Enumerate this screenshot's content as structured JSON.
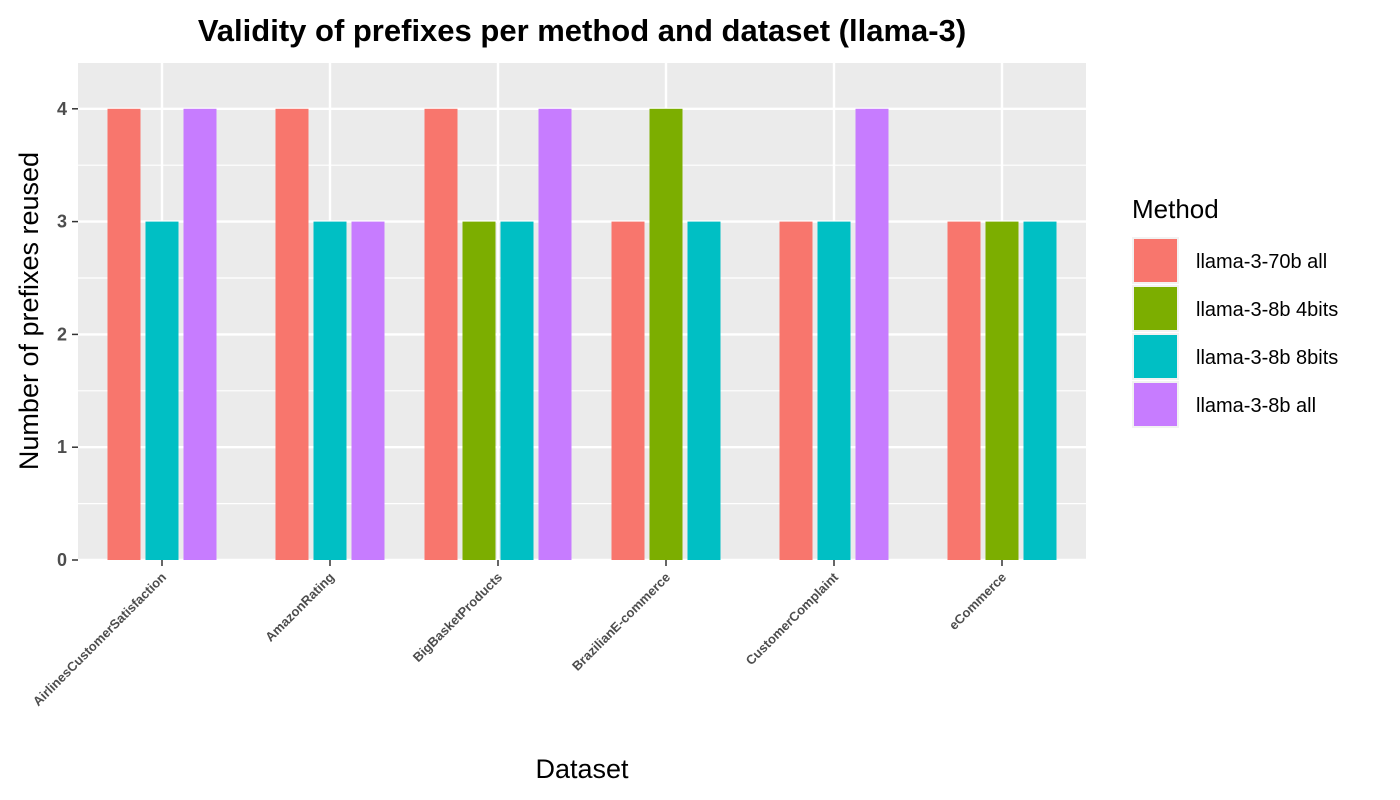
{
  "chart_data": {
    "type": "bar",
    "title": "Validity of prefixes per method and dataset (llama-3)",
    "xlabel": "Dataset",
    "ylabel": "Number of prefixes reused",
    "ylim": [
      0,
      4.4
    ],
    "yticks": [
      "0",
      "1",
      "2",
      "3",
      "4"
    ],
    "grid": true,
    "legend_title": "Method",
    "legend_position": "right",
    "categories": [
      "AirlinesCustomerSatisfaction",
      "AmazonRating",
      "BigBasketProducts",
      "BrazilianE-commerce",
      "CustomerComplaint",
      "eCommerce"
    ],
    "series": [
      {
        "name": "llama-3-70b all",
        "color": "#F8766D",
        "values": [
          4,
          4,
          4,
          3,
          3,
          3
        ]
      },
      {
        "name": "llama-3-8b 4bits",
        "color": "#7CAE00",
        "values": [
          null,
          null,
          3,
          4,
          null,
          3
        ]
      },
      {
        "name": "llama-3-8b 8bits",
        "color": "#00BFC4",
        "values": [
          3,
          3,
          3,
          3,
          3,
          3
        ]
      },
      {
        "name": "llama-3-8b all",
        "color": "#C77CFF",
        "values": [
          4,
          3,
          4,
          null,
          4,
          null
        ]
      }
    ]
  }
}
